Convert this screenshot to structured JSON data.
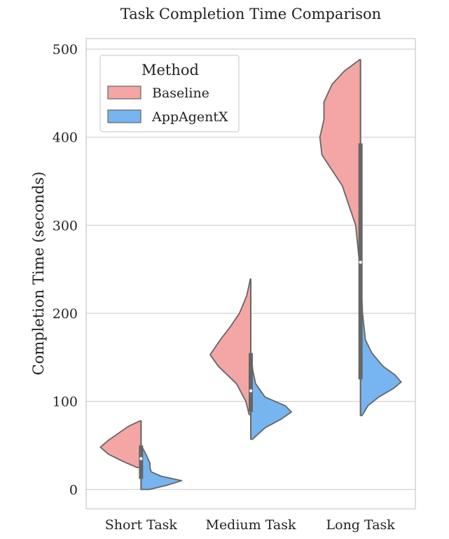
{
  "chart_data": {
    "type": "violin",
    "title": "Task Completion Time Comparison",
    "xlabel": "",
    "ylabel": "Completion Time (seconds)",
    "ylim": [
      -22,
      512
    ],
    "yticks": [
      0,
      100,
      200,
      300,
      400,
      500
    ],
    "grid": true,
    "split": true,
    "legend": {
      "title": "Method",
      "position": "top-left"
    },
    "categories": [
      "Short Task",
      "Medium Task",
      "Long Task"
    ],
    "series": [
      {
        "name": "Baseline",
        "color": "#F4A6A4",
        "side": "left",
        "groups": [
          {
            "min": 25,
            "max": 78,
            "density": [
              [
                25,
                0.1
              ],
              [
                32,
                0.45
              ],
              [
                40,
                0.8
              ],
              [
                48,
                1.0
              ],
              [
                56,
                0.8
              ],
              [
                64,
                0.55
              ],
              [
                72,
                0.3
              ],
              [
                78,
                0.02
              ]
            ]
          },
          {
            "min": 85,
            "max": 239,
            "density": [
              [
                85,
                0.04
              ],
              [
                100,
                0.12
              ],
              [
                120,
                0.35
              ],
              [
                140,
                0.8
              ],
              [
                153,
                1.0
              ],
              [
                170,
                0.75
              ],
              [
                185,
                0.5
              ],
              [
                200,
                0.28
              ],
              [
                220,
                0.1
              ],
              [
                239,
                0.01
              ]
            ]
          },
          {
            "min": 255,
            "max": 488,
            "density": [
              [
                255,
                0.02
              ],
              [
                300,
                0.12
              ],
              [
                345,
                0.45
              ],
              [
                380,
                0.95
              ],
              [
                400,
                1.0
              ],
              [
                420,
                0.9
              ],
              [
                440,
                0.9
              ],
              [
                460,
                0.7
              ],
              [
                475,
                0.4
              ],
              [
                488,
                0.02
              ]
            ]
          }
        ]
      },
      {
        "name": "AppAgentX",
        "color": "#76B5F0",
        "side": "right",
        "groups": [
          {
            "min": 0,
            "max": 48,
            "density": [
              [
                0,
                0.2
              ],
              [
                5,
                0.65
              ],
              [
                10,
                1.0
              ],
              [
                15,
                0.5
              ],
              [
                20,
                0.25
              ],
              [
                25,
                0.22
              ],
              [
                30,
                0.22
              ],
              [
                40,
                0.12
              ],
              [
                48,
                0.03
              ]
            ]
          },
          {
            "min": 57,
            "max": 150,
            "density": [
              [
                57,
                0.04
              ],
              [
                70,
                0.35
              ],
              [
                80,
                0.75
              ],
              [
                88,
                1.0
              ],
              [
                95,
                0.85
              ],
              [
                105,
                0.35
              ],
              [
                120,
                0.12
              ],
              [
                135,
                0.05
              ],
              [
                150,
                0.02
              ]
            ]
          },
          {
            "min": 84,
            "max": 260,
            "density": [
              [
                84,
                0.04
              ],
              [
                95,
                0.18
              ],
              [
                105,
                0.45
              ],
              [
                115,
                0.82
              ],
              [
                122,
                1.0
              ],
              [
                130,
                0.85
              ],
              [
                140,
                0.55
              ],
              [
                155,
                0.28
              ],
              [
                170,
                0.12
              ],
              [
                200,
                0.05
              ],
              [
                230,
                0.02
              ],
              [
                260,
                0.01
              ]
            ]
          }
        ]
      }
    ],
    "box": [
      {
        "category": "Short Task",
        "q1": 12,
        "q3": 50,
        "median": 35,
        "whisker_low": 0,
        "whisker_high": 78
      },
      {
        "category": "Medium Task",
        "q1": 88,
        "q3": 155,
        "median": 112,
        "whisker_low": 57,
        "whisker_high": 239
      },
      {
        "category": "Long Task",
        "q1": 125,
        "q3": 393,
        "median": 258,
        "whisker_low": 84,
        "whisker_high": 488
      }
    ]
  }
}
